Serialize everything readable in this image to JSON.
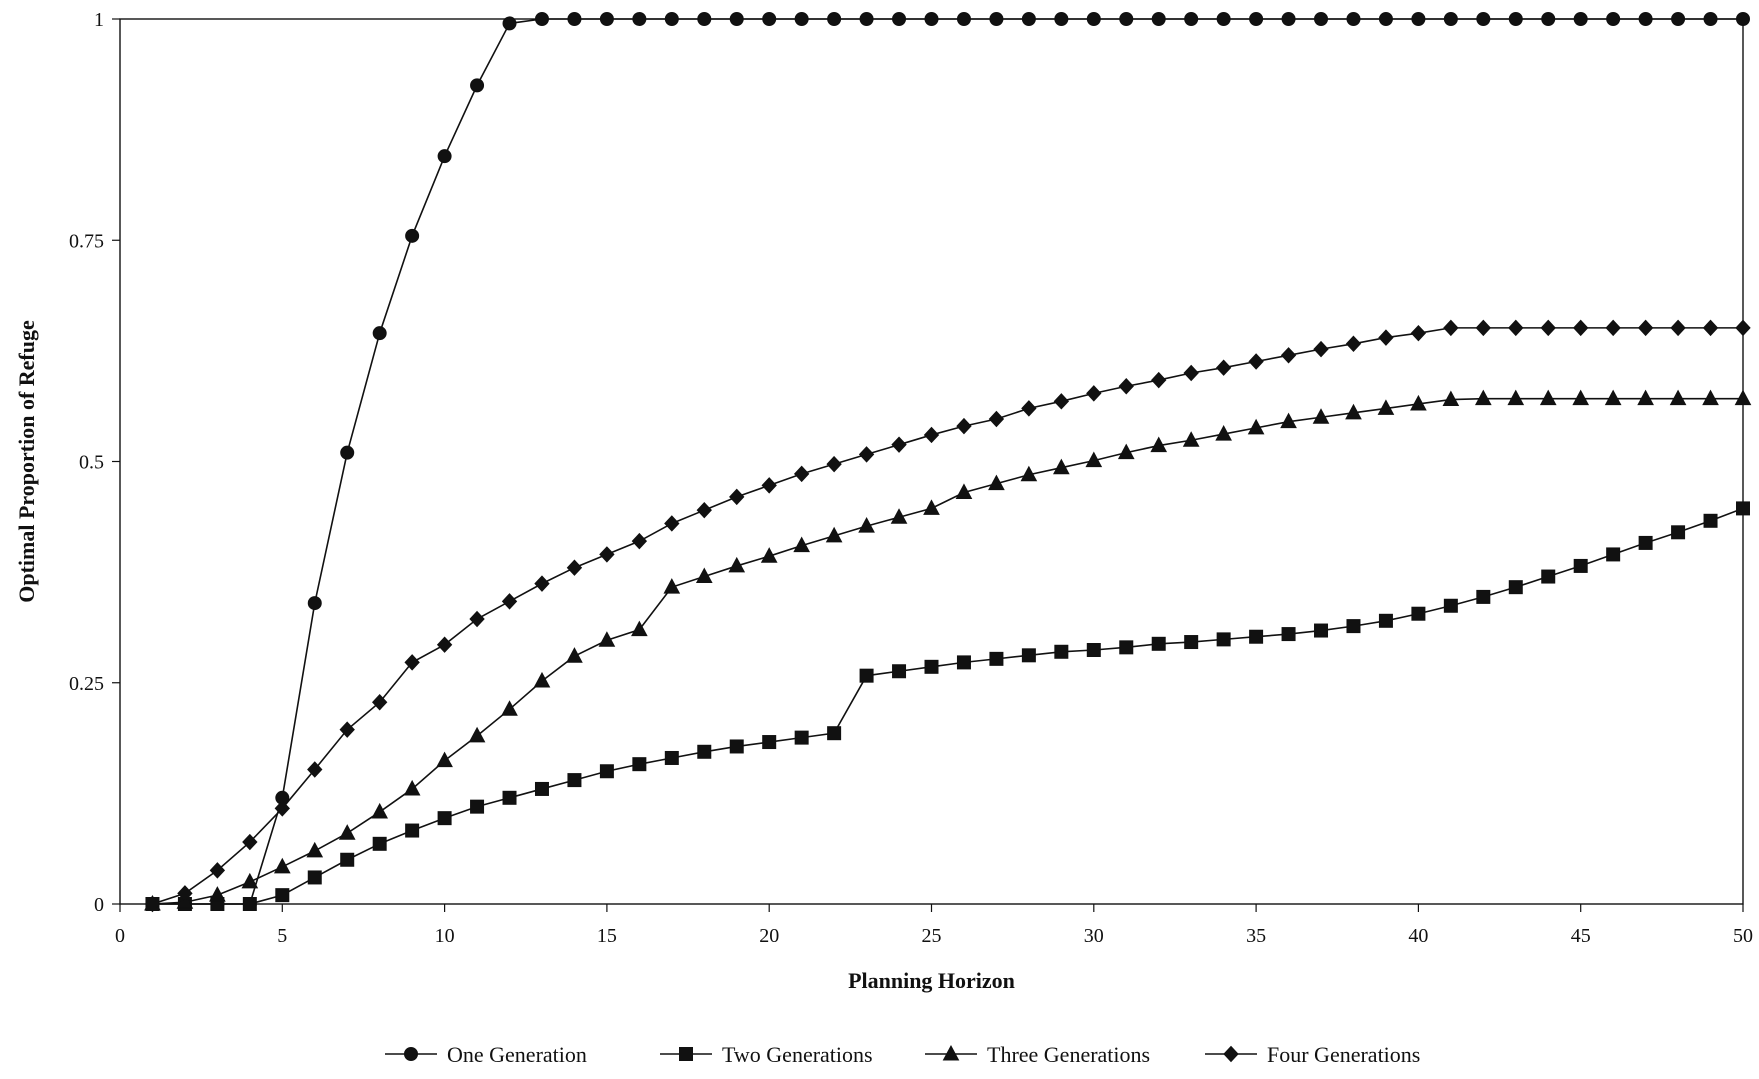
{
  "chart_data": {
    "type": "line",
    "title": "",
    "xlabel": "Planning Horizon",
    "ylabel": "Optimal Proportion of Refuge",
    "xlim": [
      0,
      50
    ],
    "ylim": [
      0,
      1
    ],
    "xticks": [
      0,
      5,
      10,
      15,
      20,
      25,
      30,
      35,
      40,
      45,
      50
    ],
    "yticks": [
      0,
      0.25,
      0.5,
      0.75,
      1
    ],
    "ytick_labels": [
      "0",
      "0.25",
      "0.5",
      "0.75",
      "1"
    ],
    "grid": false,
    "legend_position": "bottom",
    "series": [
      {
        "name": "One Generation",
        "marker": "circle",
        "x": [
          1,
          2,
          3,
          4,
          5,
          6,
          7,
          8,
          9,
          10,
          11,
          12,
          13,
          14,
          15,
          16,
          17,
          18,
          19,
          20,
          21,
          22,
          23,
          24,
          25,
          26,
          27,
          28,
          29,
          30,
          31,
          32,
          33,
          34,
          35,
          36,
          37,
          38,
          39,
          40,
          41,
          42,
          43,
          44,
          45,
          46,
          47,
          48,
          49,
          50
        ],
        "values": [
          0,
          0,
          0,
          0,
          0.12,
          0.34,
          0.51,
          0.645,
          0.755,
          0.845,
          0.925,
          0.995,
          1,
          1,
          1,
          1,
          1,
          1,
          1,
          1,
          1,
          1,
          1,
          1,
          1,
          1,
          1,
          1,
          1,
          1,
          1,
          1,
          1,
          1,
          1,
          1,
          1,
          1,
          1,
          1,
          1,
          1,
          1,
          1,
          1,
          1,
          1,
          1,
          1,
          1
        ]
      },
      {
        "name": "Two Generations",
        "marker": "square",
        "x": [
          1,
          2,
          3,
          4,
          5,
          6,
          7,
          8,
          9,
          10,
          11,
          12,
          13,
          14,
          15,
          16,
          17,
          18,
          19,
          20,
          21,
          22,
          23,
          24,
          25,
          26,
          27,
          28,
          29,
          30,
          31,
          32,
          33,
          34,
          35,
          36,
          37,
          38,
          39,
          40,
          41,
          42,
          43,
          44,
          45,
          46,
          47,
          48,
          49,
          50
        ],
        "values": [
          0,
          0,
          0,
          0,
          0.01,
          0.03,
          0.05,
          0.068,
          0.083,
          0.097,
          0.11,
          0.12,
          0.13,
          0.14,
          0.15,
          0.158,
          0.165,
          0.172,
          0.178,
          0.183,
          0.188,
          0.193,
          0.258,
          0.263,
          0.268,
          0.273,
          0.277,
          0.281,
          0.285,
          0.287,
          0.29,
          0.294,
          0.296,
          0.299,
          0.302,
          0.305,
          0.309,
          0.314,
          0.32,
          0.328,
          0.337,
          0.347,
          0.358,
          0.37,
          0.382,
          0.395,
          0.408,
          0.42,
          0.433,
          0.447
        ]
      },
      {
        "name": "Three Generations",
        "marker": "triangle",
        "x": [
          1,
          2,
          3,
          4,
          5,
          6,
          7,
          8,
          9,
          10,
          11,
          12,
          13,
          14,
          15,
          16,
          17,
          18,
          19,
          20,
          21,
          22,
          23,
          24,
          25,
          26,
          27,
          28,
          29,
          30,
          31,
          32,
          33,
          34,
          35,
          36,
          37,
          38,
          39,
          40,
          41,
          42,
          43,
          44,
          45,
          46,
          47,
          48,
          49,
          50
        ],
        "values": [
          0,
          0.002,
          0.01,
          0.025,
          0.042,
          0.06,
          0.08,
          0.104,
          0.13,
          0.162,
          0.19,
          0.22,
          0.252,
          0.28,
          0.298,
          0.31,
          0.358,
          0.37,
          0.382,
          0.393,
          0.405,
          0.416,
          0.427,
          0.437,
          0.447,
          0.465,
          0.475,
          0.485,
          0.493,
          0.501,
          0.51,
          0.518,
          0.524,
          0.531,
          0.538,
          0.545,
          0.55,
          0.555,
          0.56,
          0.565,
          0.57,
          0.571,
          0.571,
          0.571,
          0.571,
          0.571,
          0.571,
          0.571,
          0.571,
          0.571
        ]
      },
      {
        "name": "Four Generations",
        "marker": "diamond",
        "x": [
          1,
          2,
          3,
          4,
          5,
          6,
          7,
          8,
          9,
          10,
          11,
          12,
          13,
          14,
          15,
          16,
          17,
          18,
          19,
          20,
          21,
          22,
          23,
          24,
          25,
          26,
          27,
          28,
          29,
          30,
          31,
          32,
          33,
          34,
          35,
          36,
          37,
          38,
          39,
          40,
          41,
          42,
          43,
          44,
          45,
          46,
          47,
          48,
          49,
          50
        ],
        "values": [
          0,
          0.012,
          0.038,
          0.07,
          0.108,
          0.152,
          0.197,
          0.228,
          0.273,
          0.293,
          0.322,
          0.342,
          0.362,
          0.38,
          0.395,
          0.41,
          0.43,
          0.445,
          0.46,
          0.473,
          0.486,
          0.497,
          0.508,
          0.519,
          0.53,
          0.54,
          0.548,
          0.56,
          0.568,
          0.577,
          0.585,
          0.592,
          0.6,
          0.606,
          0.613,
          0.62,
          0.627,
          0.633,
          0.64,
          0.645,
          0.651,
          0.651,
          0.651,
          0.651,
          0.651,
          0.651,
          0.651,
          0.651,
          0.651,
          0.651
        ]
      }
    ]
  }
}
